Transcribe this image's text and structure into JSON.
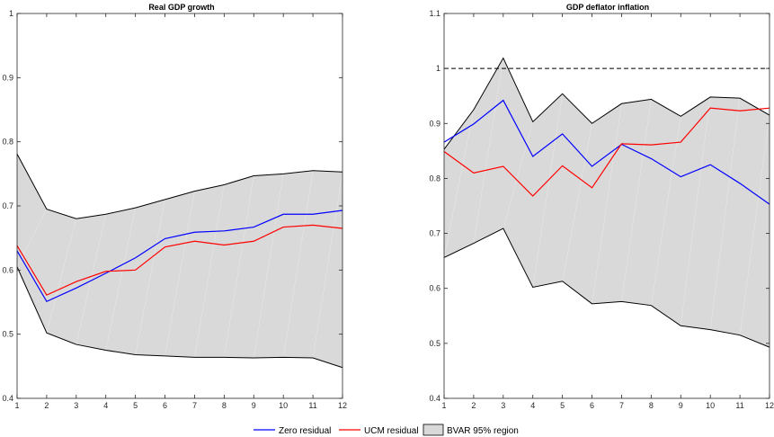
{
  "chart_data": [
    {
      "type": "line",
      "title": "Real GDP growth",
      "xlabel": "",
      "ylabel": "",
      "x": [
        1,
        2,
        3,
        4,
        5,
        6,
        7,
        8,
        9,
        10,
        11,
        12
      ],
      "xlim": [
        1,
        12
      ],
      "ylim": [
        0.4,
        1.0
      ],
      "yticks": [
        0.4,
        0.5,
        0.6,
        0.7,
        0.8,
        0.9,
        1.0
      ],
      "ytick_labels": [
        "0.4",
        "0.5",
        "0.6",
        "0.7",
        "0.8",
        "0.9",
        "1"
      ],
      "xtick_labels": [
        "1",
        "2",
        "3",
        "4",
        "5",
        "6",
        "7",
        "8",
        "9",
        "10",
        "11",
        "12"
      ],
      "band": {
        "upper": [
          0.781,
          0.695,
          0.68,
          0.687,
          0.697,
          0.71,
          0.723,
          0.733,
          0.747,
          0.75,
          0.755,
          0.753
        ],
        "lower": [
          0.605,
          0.502,
          0.484,
          0.475,
          0.468,
          0.466,
          0.464,
          0.464,
          0.463,
          0.464,
          0.463,
          0.448
        ]
      },
      "series": [
        {
          "name": "Zero residual",
          "color": "#0000ff",
          "values": [
            0.63,
            0.551,
            0.572,
            0.595,
            0.619,
            0.649,
            0.659,
            0.661,
            0.667,
            0.687,
            0.687,
            0.693
          ]
        },
        {
          "name": "UCM residual",
          "color": "#ff0000",
          "values": [
            0.638,
            0.561,
            0.582,
            0.598,
            0.6,
            0.636,
            0.645,
            0.639,
            0.645,
            0.667,
            0.67,
            0.665
          ]
        }
      ],
      "reference_line": null,
      "grid": false
    },
    {
      "type": "line",
      "title": "GDP deflator inflation",
      "xlabel": "",
      "ylabel": "",
      "x": [
        1,
        2,
        3,
        4,
        5,
        6,
        7,
        8,
        9,
        10,
        11,
        12
      ],
      "xlim": [
        1,
        12
      ],
      "ylim": [
        0.4,
        1.1
      ],
      "yticks": [
        0.4,
        0.5,
        0.6,
        0.7,
        0.8,
        0.9,
        1.0,
        1.1
      ],
      "ytick_labels": [
        "0.4",
        "0.5",
        "0.6",
        "0.7",
        "0.8",
        "0.9",
        "1",
        "1.1"
      ],
      "xtick_labels": [
        "1",
        "2",
        "3",
        "4",
        "5",
        "6",
        "7",
        "8",
        "9",
        "10",
        "11",
        "12"
      ],
      "band": {
        "upper": [
          0.853,
          0.925,
          1.019,
          0.903,
          0.954,
          0.9,
          0.936,
          0.944,
          0.913,
          0.948,
          0.946,
          0.915
        ],
        "lower": [
          0.656,
          0.682,
          0.709,
          0.602,
          0.613,
          0.572,
          0.576,
          0.569,
          0.532,
          0.525,
          0.515,
          0.493
        ]
      },
      "series": [
        {
          "name": "Zero residual",
          "color": "#0000ff",
          "values": [
            0.866,
            0.899,
            0.942,
            0.84,
            0.881,
            0.822,
            0.862,
            0.836,
            0.803,
            0.825,
            0.791,
            0.753
          ]
        },
        {
          "name": "UCM residual",
          "color": "#ff0000",
          "values": [
            0.849,
            0.81,
            0.822,
            0.768,
            0.823,
            0.783,
            0.863,
            0.861,
            0.866,
            0.928,
            0.923,
            0.928
          ]
        }
      ],
      "reference_line": {
        "y": 1.0,
        "style": "dashed",
        "color": "#000000"
      },
      "grid": false
    }
  ],
  "legend": {
    "placement": "bottom-center",
    "items": [
      {
        "label": "Zero residual",
        "kind": "line",
        "color": "#0000ff"
      },
      {
        "label": "UCM residual",
        "kind": "line",
        "color": "#ff0000"
      },
      {
        "label": "BVAR 95% region",
        "kind": "patch",
        "color": "#d9d9d9"
      }
    ]
  },
  "colors": {
    "band_fill": "#d9d9d9",
    "band_edge": "#000000",
    "axes": "#262626"
  }
}
